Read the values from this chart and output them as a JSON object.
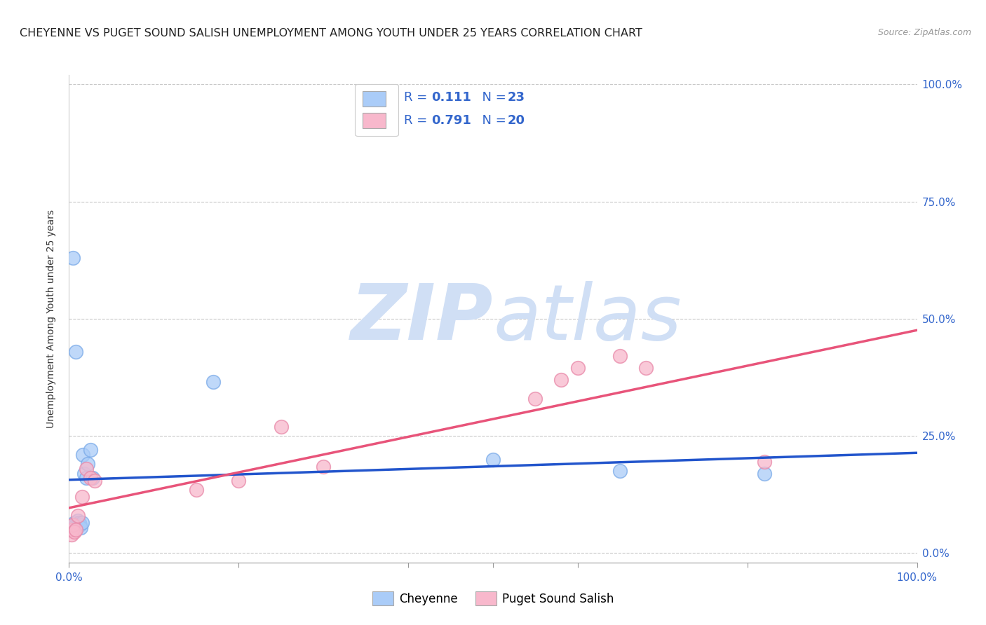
{
  "title": "CHEYENNE VS PUGET SOUND SALISH UNEMPLOYMENT AMONG YOUTH UNDER 25 YEARS CORRELATION CHART",
  "source": "Source: ZipAtlas.com",
  "ylabel": "Unemployment Among Youth under 25 years",
  "xlim": [
    0,
    1.0
  ],
  "ylim": [
    -0.02,
    1.02
  ],
  "cheyenne_color": "#aaccf8",
  "cheyenne_edge_color": "#7aaae8",
  "puget_color": "#f8b8cc",
  "puget_edge_color": "#e888a8",
  "cheyenne_line_color": "#2255cc",
  "puget_line_color": "#e8547a",
  "R_cheyenne": 0.111,
  "N_cheyenne": 23,
  "R_puget": 0.791,
  "N_puget": 20,
  "legend_text_color": "#3366cc",
  "watermark_zip": "ZIP",
  "watermark_atlas": "atlas",
  "watermark_color": "#d0dff5",
  "cheyenne_x": [
    0.003,
    0.004,
    0.005,
    0.006,
    0.007,
    0.008,
    0.01,
    0.012,
    0.013,
    0.014,
    0.015,
    0.016,
    0.018,
    0.02,
    0.022,
    0.025,
    0.028,
    0.008,
    0.005,
    0.17,
    0.5,
    0.65,
    0.82
  ],
  "cheyenne_y": [
    0.05,
    0.055,
    0.06,
    0.065,
    0.05,
    0.06,
    0.07,
    0.065,
    0.06,
    0.055,
    0.065,
    0.21,
    0.17,
    0.16,
    0.19,
    0.22,
    0.16,
    0.43,
    0.63,
    0.365,
    0.2,
    0.175,
    0.17
  ],
  "puget_x": [
    0.003,
    0.004,
    0.005,
    0.006,
    0.008,
    0.01,
    0.015,
    0.02,
    0.025,
    0.03,
    0.15,
    0.2,
    0.25,
    0.3,
    0.55,
    0.58,
    0.6,
    0.65,
    0.68,
    0.82
  ],
  "puget_y": [
    0.04,
    0.05,
    0.06,
    0.045,
    0.05,
    0.08,
    0.12,
    0.18,
    0.16,
    0.155,
    0.135,
    0.155,
    0.27,
    0.185,
    0.33,
    0.37,
    0.395,
    0.42,
    0.395,
    0.195
  ],
  "background_color": "#ffffff",
  "grid_color": "#bbbbbb",
  "title_color": "#222222",
  "title_fontsize": 11.5,
  "axis_label_fontsize": 10,
  "tick_color": "#3366cc",
  "tick_fontsize": 11
}
